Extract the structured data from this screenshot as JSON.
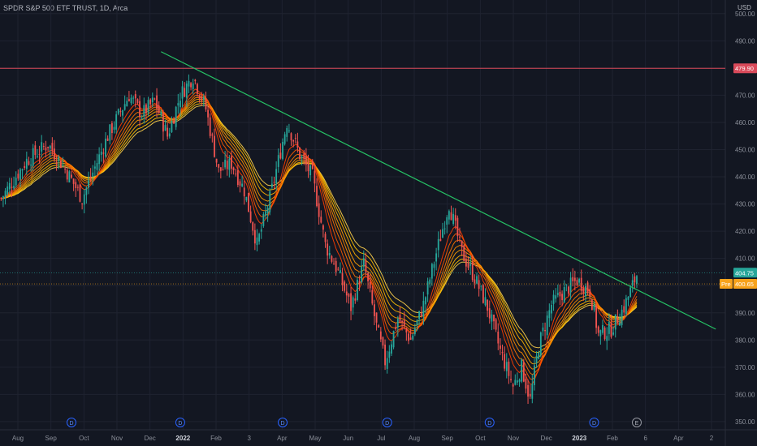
{
  "header": {
    "title": "SPDR S&P 500 ETF TRUST, 1D, Arca",
    "currency": "USD"
  },
  "colors": {
    "background": "#131722",
    "up": "#26a69a",
    "down": "#ef5350",
    "trendline": "#26c165",
    "hline": "#d94a5a"
  },
  "chart_data": {
    "type": "candlestick",
    "ylim": [
      347,
      505
    ],
    "y_ticks": [
      350,
      360,
      370,
      380,
      390,
      400,
      410,
      420,
      430,
      440,
      450,
      460,
      470,
      480,
      490,
      500
    ],
    "x_labels": [
      {
        "label": "Aug",
        "bold": false
      },
      {
        "label": "Sep",
        "bold": false
      },
      {
        "label": "Oct",
        "bold": false
      },
      {
        "label": "Nov",
        "bold": false
      },
      {
        "label": "Dec",
        "bold": false
      },
      {
        "label": "2022",
        "bold": true
      },
      {
        "label": "Feb",
        "bold": false
      },
      {
        "label": "3",
        "bold": false
      },
      {
        "label": "Apr",
        "bold": false
      },
      {
        "label": "May",
        "bold": false
      },
      {
        "label": "Jun",
        "bold": false
      },
      {
        "label": "Jul",
        "bold": false
      },
      {
        "label": "Aug",
        "bold": false
      },
      {
        "label": "Sep",
        "bold": false
      },
      {
        "label": "Oct",
        "bold": false
      },
      {
        "label": "Nov",
        "bold": false
      },
      {
        "label": "Dec",
        "bold": false
      },
      {
        "label": "2023",
        "bold": true
      },
      {
        "label": "Feb",
        "bold": false
      },
      {
        "label": "6",
        "bold": false
      },
      {
        "label": "Apr",
        "bold": false
      },
      {
        "label": "2",
        "bold": false
      }
    ],
    "price_path": [
      {
        "i": 0,
        "p": 432
      },
      {
        "i": 12,
        "p": 446
      },
      {
        "i": 22,
        "p": 452
      },
      {
        "i": 30,
        "p": 443
      },
      {
        "i": 38,
        "p": 432
      },
      {
        "i": 50,
        "p": 455
      },
      {
        "i": 60,
        "p": 470
      },
      {
        "i": 66,
        "p": 463
      },
      {
        "i": 72,
        "p": 468
      },
      {
        "i": 78,
        "p": 455
      },
      {
        "i": 84,
        "p": 470
      },
      {
        "i": 90,
        "p": 477
      },
      {
        "i": 96,
        "p": 465
      },
      {
        "i": 102,
        "p": 442
      },
      {
        "i": 108,
        "p": 445
      },
      {
        "i": 114,
        "p": 435
      },
      {
        "i": 120,
        "p": 415
      },
      {
        "i": 126,
        "p": 432
      },
      {
        "i": 134,
        "p": 460
      },
      {
        "i": 140,
        "p": 448
      },
      {
        "i": 146,
        "p": 440
      },
      {
        "i": 152,
        "p": 415
      },
      {
        "i": 158,
        "p": 405
      },
      {
        "i": 164,
        "p": 392
      },
      {
        "i": 170,
        "p": 408
      },
      {
        "i": 176,
        "p": 385
      },
      {
        "i": 180,
        "p": 372
      },
      {
        "i": 186,
        "p": 388
      },
      {
        "i": 192,
        "p": 380
      },
      {
        "i": 198,
        "p": 393
      },
      {
        "i": 204,
        "p": 412
      },
      {
        "i": 210,
        "p": 430
      },
      {
        "i": 216,
        "p": 412
      },
      {
        "i": 222,
        "p": 403
      },
      {
        "i": 228,
        "p": 392
      },
      {
        "i": 234,
        "p": 376
      },
      {
        "i": 240,
        "p": 363
      },
      {
        "i": 244,
        "p": 370
      },
      {
        "i": 248,
        "p": 358
      },
      {
        "i": 252,
        "p": 378
      },
      {
        "i": 258,
        "p": 393
      },
      {
        "i": 264,
        "p": 398
      },
      {
        "i": 270,
        "p": 402
      },
      {
        "i": 276,
        "p": 398
      },
      {
        "i": 280,
        "p": 382
      },
      {
        "i": 286,
        "p": 384
      },
      {
        "i": 292,
        "p": 392
      },
      {
        "i": 298,
        "p": 404
      }
    ],
    "ribbon_periods": [
      8,
      11,
      14,
      17,
      20,
      24,
      28,
      32
    ],
    "ribbon_colors": [
      "#ff3d00",
      "#ff5a00",
      "#ff7400",
      "#ff8c00",
      "#ffa000",
      "#ffb300",
      "#ffc300",
      "#ffd24d"
    ],
    "trendline": {
      "start": {
        "i": 75,
        "p": 486
      },
      "end": {
        "i": 335,
        "p": 384
      }
    },
    "resistance": {
      "value": 479.9,
      "label": "479.90"
    },
    "last_price": {
      "value": 404.75,
      "label": "404.75"
    },
    "pre_market": {
      "tag": "Pre",
      "value": 400.65,
      "label": "400.65"
    },
    "event_markers": [
      {
        "i": 33,
        "label": "D"
      },
      {
        "i": 84,
        "label": "D"
      },
      {
        "i": 132,
        "label": "D"
      },
      {
        "i": 181,
        "label": "D"
      },
      {
        "i": 229,
        "label": "D"
      },
      {
        "i": 278,
        "label": "D"
      },
      {
        "i": 298,
        "label": "E"
      }
    ]
  }
}
